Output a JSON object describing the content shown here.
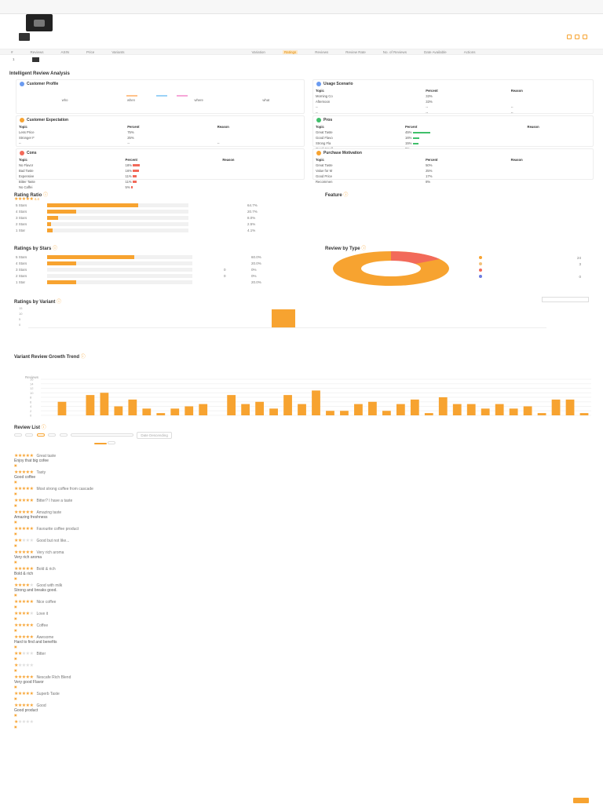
{
  "topbar": {
    "title": "",
    "links": [
      "",
      ""
    ]
  },
  "product": {
    "title": "",
    "subtitle": "",
    "extra": ""
  },
  "columns": [
    "#",
    "Reviews",
    "ASIN",
    "Price",
    "Variants",
    "Variation",
    "Ratings",
    "Reviews",
    "Review Rate",
    "No. of Reviews",
    "Date Available",
    "Actions"
  ],
  "row": {
    "idx": "1",
    "c1": "",
    "c2": "",
    "c3": "",
    "c4": "",
    "c5": "",
    "c6": "",
    "c7": "",
    "c8": "",
    "c9": ""
  },
  "analysis": {
    "title": "Intelligent Review Analysis",
    "profile_title": "Customer Profile",
    "usage_title": "Usage Scenario",
    "expectation_title": "Customer Expectation",
    "pros_title": "Pros",
    "cons_title": "Cons",
    "motivation_title": "Purchase Motivation",
    "th_topic": "Topic",
    "th_percent": "Percent",
    "th_reason": "Reason",
    "profile_who": "",
    "profile_when": "",
    "profile_where": "",
    "profile_what": "",
    "profile_who_l": "who",
    "profile_when_l": "when",
    "profile_where_l": "where",
    "profile_what_l": "what",
    "usage_rows": [
      {
        "topic": "Morning Co",
        "pct": "33%",
        "reason": ""
      },
      {
        "topic": "Afternoon",
        "pct": "33%",
        "reason": ""
      },
      {
        "topic": "--",
        "pct": "--",
        "reason": "--"
      },
      {
        "topic": "--",
        "pct": "--",
        "reason": "--"
      },
      {
        "topic": "--",
        "pct": "--",
        "reason": "--"
      }
    ],
    "expect_rows": [
      {
        "topic": "Less Price",
        "pct": "75%",
        "reason": ""
      },
      {
        "topic": "Stronger F",
        "pct": "25%",
        "reason": ""
      },
      {
        "topic": "--",
        "pct": "--",
        "reason": "--"
      },
      {
        "topic": "--",
        "pct": "--",
        "reason": "--"
      }
    ],
    "pros_rows": [
      {
        "topic": "Great Taste",
        "pct": "45%",
        "bar": 0.45,
        "reason": ""
      },
      {
        "topic": "Good Flavo",
        "pct": "16%",
        "bar": 0.16,
        "reason": ""
      },
      {
        "topic": "Strong Fla",
        "pct": "15%",
        "bar": 0.15,
        "reason": ""
      },
      {
        "topic": "Good Smell",
        "pct": "9%",
        "bar": 0.09,
        "reason": ""
      },
      {
        "topic": "Good Valu",
        "pct": "5%",
        "bar": 0.05,
        "reason": ""
      }
    ],
    "cons_rows": [
      {
        "topic": "No Flavor",
        "pct": "18%",
        "bar": 0.18,
        "reason": ""
      },
      {
        "topic": "Bad Taste",
        "pct": "16%",
        "bar": 0.16,
        "reason": ""
      },
      {
        "topic": "Expensive",
        "pct": "11%",
        "bar": 0.11,
        "reason": ""
      },
      {
        "topic": "Bitter Taste",
        "pct": "11%",
        "bar": 0.11,
        "reason": ""
      },
      {
        "topic": "No Caffei",
        "pct": "5%",
        "bar": 0.05,
        "reason": ""
      }
    ],
    "motiv_rows": [
      {
        "topic": "Great Taste",
        "pct": "50%",
        "reason": ""
      },
      {
        "topic": "Value for M",
        "pct": "25%",
        "reason": ""
      },
      {
        "topic": "Good Price",
        "pct": "17%",
        "reason": ""
      },
      {
        "topic": "Recommen",
        "pct": "8%",
        "reason": ""
      }
    ],
    "footer_link": ""
  },
  "rating_ratio": {
    "title": "Rating Ratio",
    "avg_label": "",
    "avg_value": "4.4",
    "rows": [
      {
        "label": "5 Stars",
        "count": "",
        "pct": "64.7%",
        "frac": 0.647
      },
      {
        "label": "4 Stars",
        "count": "",
        "pct": "20.7%",
        "frac": 0.207
      },
      {
        "label": "3 Stars",
        "count": "",
        "pct": "8.0%",
        "frac": 0.08
      },
      {
        "label": "2 Stars",
        "count": "",
        "pct": "2.5%",
        "frac": 0.025
      },
      {
        "label": "1 Star",
        "count": "",
        "pct": "4.1%",
        "frac": 0.041
      }
    ]
  },
  "feature": {
    "title": "Feature",
    "empty": ""
  },
  "ratings_by_stars": {
    "title": "Ratings by Stars",
    "filters": "",
    "rows": [
      {
        "label": "5 Stars",
        "count": "",
        "pct": "60.0%",
        "frac": 0.6
      },
      {
        "label": "4 Stars",
        "count": "",
        "pct": "20.0%",
        "frac": 0.2
      },
      {
        "label": "3 Stars",
        "count": "0",
        "pct": "0%",
        "frac": 0.0
      },
      {
        "label": "2 Stars",
        "count": "0",
        "pct": "0%",
        "frac": 0.0
      },
      {
        "label": "1 Star",
        "count": "",
        "pct": "20.0%",
        "frac": 0.2
      }
    ]
  },
  "review_by_type": {
    "title": "Review by Type",
    "legend": [
      {
        "label": "",
        "value": "24",
        "color": "#f7a330"
      },
      {
        "label": "",
        "value": "3",
        "color": "#f3c27a"
      },
      {
        "label": "",
        "value": "",
        "color": "#f26a5a"
      },
      {
        "label": "",
        "value": "0",
        "color": "#6b7be0"
      }
    ]
  },
  "ratings_by_variant": {
    "title": "Ratings by Variant",
    "select_label": "",
    "select_value": "",
    "yaxis": [
      "15",
      "10",
      "5",
      "0"
    ],
    "bar_label": "",
    "legend": [
      "",
      "",
      "",
      "",
      "",
      ""
    ]
  },
  "growth_trend": {
    "title": "Variant Review Growth Trend",
    "link1": "",
    "link2": "",
    "ylabel": "Reviews",
    "yticks": [
      "16",
      "14",
      "12",
      "10",
      "8",
      "6",
      "4",
      "2",
      "0"
    ],
    "values": [
      0,
      6,
      0,
      9,
      10,
      4,
      7,
      3,
      1,
      3,
      4,
      5,
      0,
      9,
      5,
      6,
      3,
      9,
      5,
      11,
      2,
      2,
      5,
      6,
      2,
      5,
      7,
      1,
      8,
      5,
      5,
      3,
      5,
      3,
      4,
      1,
      7,
      7,
      1
    ],
    "labels": [
      "",
      "",
      "",
      "",
      "",
      "",
      "",
      "",
      "",
      "",
      "",
      "",
      "",
      "",
      "",
      "",
      "",
      "",
      "",
      "",
      "",
      "",
      "",
      "",
      "",
      "",
      "",
      "",
      "",
      "",
      "",
      "",
      "",
      "",
      "",
      "",
      "",
      "",
      ""
    ]
  },
  "review_list": {
    "title": "Review List",
    "filters": [
      "",
      "",
      "",
      "",
      ""
    ],
    "search_placeholder": "",
    "sort_label": "Date Descending",
    "btn_search": "",
    "btn_reset": "",
    "reviews": [
      {
        "stars": 5,
        "title": "Great taste",
        "tag": "",
        "body": "Enjoy that big cofee",
        "meta": ""
      },
      {
        "stars": 5,
        "title": "Tasty",
        "tag": "",
        "body": "Good coffee",
        "meta": ""
      },
      {
        "stars": 5,
        "title": "Most strong coffee from cascade",
        "tag": "",
        "body": "",
        "meta": ""
      },
      {
        "stars": 5,
        "title": "Bitter? I have a taste",
        "tag": "",
        "body": "",
        "meta": ""
      },
      {
        "stars": 5,
        "title": "Amazing taste",
        "tag": "",
        "body": "Amazing freshness",
        "meta": ""
      },
      {
        "stars": 5,
        "title": "Favourite coffee product",
        "tag": "",
        "body": "",
        "meta": ""
      },
      {
        "stars": 2,
        "title": "Good but not like...",
        "tag": "",
        "body": "",
        "meta": ""
      },
      {
        "stars": 5,
        "title": "Very rich aroma",
        "tag": "",
        "body": "Very rich aroma",
        "meta": ""
      },
      {
        "stars": 5,
        "title": "Bold & rich",
        "tag": "",
        "body": "Bold & rich",
        "meta": ""
      },
      {
        "stars": 4,
        "title": "Good with milk",
        "tag": "",
        "body": "Strong and breaks good.",
        "meta": ""
      },
      {
        "stars": 5,
        "title": "Nice coffee",
        "tag": "",
        "body": "",
        "meta": ""
      },
      {
        "stars": 4,
        "title": "Love it",
        "tag": "",
        "body": "",
        "meta": ""
      },
      {
        "stars": 5,
        "title": "Coffee",
        "tag": "",
        "body": "",
        "meta": ""
      },
      {
        "stars": 5,
        "title": "Awesome",
        "tag": "",
        "body": "Hard to find and benefits",
        "meta": ""
      },
      {
        "stars": 2,
        "title": "Bitter",
        "tag": "",
        "body": "",
        "meta": ""
      },
      {
        "stars": 1,
        "title": "",
        "tag": "",
        "body": "",
        "meta": ""
      },
      {
        "stars": 5,
        "title": "Nescafe Rich Blend",
        "tag": "",
        "body": "Very good Flavor",
        "meta": ""
      },
      {
        "stars": 5,
        "title": "Superb Taste",
        "tag": "",
        "body": "",
        "meta": ""
      },
      {
        "stars": 5,
        "title": "Good",
        "tag": "",
        "body": "Good product",
        "meta": ""
      },
      {
        "stars": 1,
        "title": "",
        "tag": "",
        "body": "",
        "meta": ""
      }
    ]
  },
  "pager": {
    "prev": "",
    "next": "",
    "pages": ""
  }
}
